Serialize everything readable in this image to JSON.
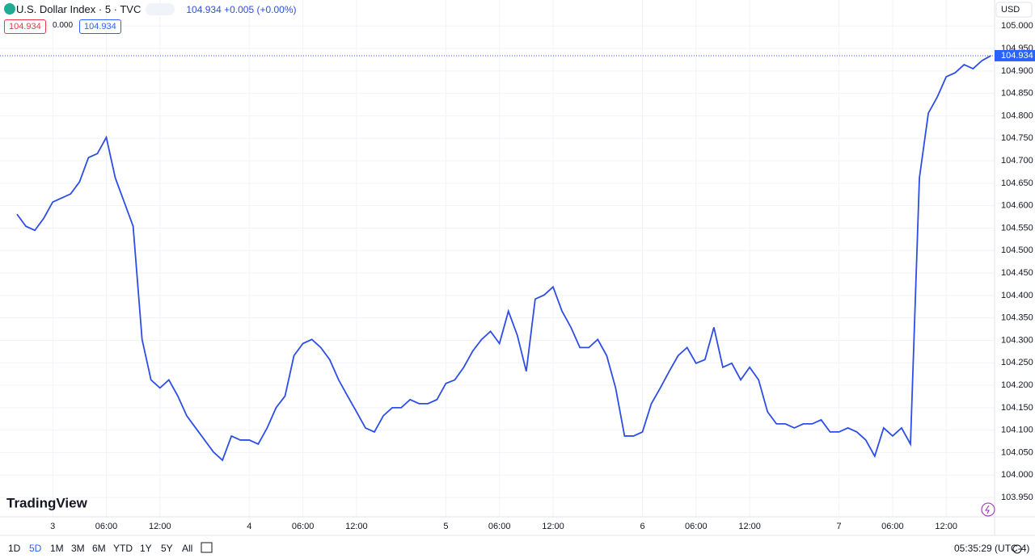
{
  "header": {
    "symbol": "U.S. Dollar Index · 5 · TVC",
    "quote": "104.934 +0.005 (+0.00%)",
    "bid": "104.934",
    "spread": "0.000",
    "ask": "104.934",
    "currency": "USD",
    "logo": "TradingView",
    "clock": "05:35:29 (UTC-4)",
    "timeframes": [
      "1D",
      "5D",
      "1M",
      "3M",
      "6M",
      "YTD",
      "1Y",
      "5Y",
      "All"
    ],
    "active_timeframe": "5D"
  },
  "chart_data": {
    "type": "line",
    "categories": [
      null,
      null,
      null,
      null,
      "3",
      null,
      null,
      null,
      null,
      null,
      "06:00",
      null,
      null,
      null,
      null,
      null,
      "12:00",
      null,
      null,
      null,
      null,
      null,
      null,
      null,
      null,
      null,
      "4",
      null,
      null,
      null,
      null,
      null,
      "06:00",
      null,
      null,
      null,
      null,
      null,
      "12:00",
      null,
      null,
      null,
      null,
      null,
      null,
      null,
      null,
      null,
      "5",
      null,
      null,
      null,
      null,
      null,
      "06:00",
      null,
      null,
      null,
      null,
      null,
      "12:00",
      null,
      null,
      null,
      null,
      null,
      null,
      null,
      null,
      null,
      "6",
      null,
      null,
      null,
      null,
      null,
      "06:00",
      null,
      null,
      null,
      null,
      null,
      "12:00",
      null,
      null,
      null,
      null,
      null,
      null,
      null,
      null,
      null,
      "7",
      null,
      null,
      null,
      null,
      null,
      "06:00",
      null,
      null,
      null,
      null,
      null,
      "12:00",
      null,
      null,
      null,
      null,
      null
    ],
    "series": [
      {
        "name": "U.S. Dollar Index",
        "color": "#2e4de6",
        "values": [
          104.581,
          104.554,
          104.545,
          104.572,
          104.608,
          104.617,
          104.626,
          104.653,
          104.707,
          104.716,
          104.752,
          104.662,
          104.608,
          104.554,
          104.302,
          104.212,
          104.194,
          104.212,
          104.176,
          104.132,
          104.105,
          104.078,
          104.051,
          104.033,
          104.087,
          104.078,
          104.078,
          104.069,
          104.105,
          104.15,
          104.176,
          104.266,
          104.293,
          104.302,
          104.284,
          104.257,
          104.212,
          104.176,
          104.141,
          104.105,
          104.096,
          104.132,
          104.15,
          104.15,
          104.168,
          104.159,
          104.159,
          104.168,
          104.204,
          104.212,
          104.24,
          104.276,
          104.302,
          104.32,
          104.293,
          104.365,
          104.311,
          104.231,
          104.392,
          104.401,
          104.419,
          104.365,
          104.329,
          104.284,
          104.284,
          104.302,
          104.266,
          104.194,
          104.087,
          104.087,
          104.096,
          104.159,
          104.194,
          104.231,
          104.266,
          104.284,
          104.249,
          104.257,
          104.329,
          104.24,
          104.249,
          104.212,
          104.24,
          104.212,
          104.141,
          104.114,
          104.114,
          104.105,
          104.114,
          104.114,
          104.123,
          104.096,
          104.096,
          104.105,
          104.096,
          104.078,
          104.042,
          104.105,
          104.087,
          104.105,
          104.069,
          104.662,
          104.806,
          104.842,
          104.887,
          104.896,
          104.914,
          104.905,
          104.923,
          104.934
        ]
      }
    ],
    "last_label": "104.934",
    "ylim": [
      103.907,
      105.058
    ],
    "yticks": [
      {
        "value": 103.95,
        "label": "103.950"
      },
      {
        "value": 104,
        "label": "104.000"
      },
      {
        "value": 104.05,
        "label": "104.050"
      },
      {
        "value": 104.1,
        "label": "104.100"
      },
      {
        "value": 104.15,
        "label": "104.150"
      },
      {
        "value": 104.2,
        "label": "104.200"
      },
      {
        "value": 104.25,
        "label": "104.250"
      },
      {
        "value": 104.3,
        "label": "104.300"
      },
      {
        "value": 104.35,
        "label": "104.350"
      },
      {
        "value": 104.4,
        "label": "104.400"
      },
      {
        "value": 104.45,
        "label": "104.450"
      },
      {
        "value": 104.5,
        "label": "104.500"
      },
      {
        "value": 104.55,
        "label": "104.550"
      },
      {
        "value": 104.6,
        "label": "104.600"
      },
      {
        "value": 104.65,
        "label": "104.650"
      },
      {
        "value": 104.7,
        "label": "104.700"
      },
      {
        "value": 104.75,
        "label": "104.750"
      },
      {
        "value": 104.8,
        "label": "104.800"
      },
      {
        "value": 104.85,
        "label": "104.850"
      },
      {
        "value": 104.9,
        "label": "104.900"
      },
      {
        "value": 104.95,
        "label": "104.950"
      },
      {
        "value": 105,
        "label": "105.000"
      }
    ],
    "grid": true
  }
}
